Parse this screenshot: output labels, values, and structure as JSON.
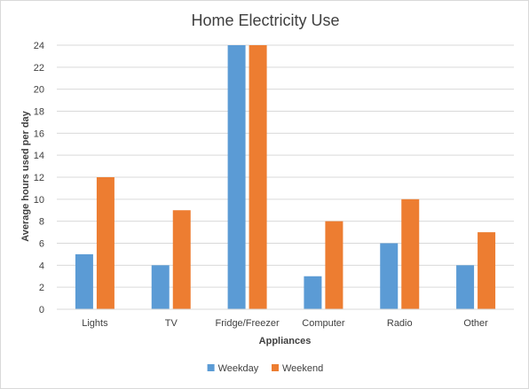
{
  "chart_data": {
    "type": "bar",
    "title": "Home Electricity Use",
    "xlabel": "Appliances",
    "ylabel": "Average hours used per day",
    "categories": [
      "Lights",
      "TV",
      "Fridge/Freezer",
      "Computer",
      "Radio",
      "Other"
    ],
    "series": [
      {
        "name": "Weekday",
        "values": [
          5,
          4,
          24,
          3,
          6,
          4
        ],
        "color": "#5b9bd5"
      },
      {
        "name": "Weekend",
        "values": [
          12,
          9,
          24,
          8,
          10,
          7
        ],
        "color": "#ed7d31"
      }
    ],
    "ylim": [
      0,
      24
    ],
    "yticks": [
      0,
      2,
      4,
      6,
      8,
      10,
      12,
      14,
      16,
      18,
      20,
      22,
      24
    ],
    "grid": true,
    "legend": "bottom"
  }
}
